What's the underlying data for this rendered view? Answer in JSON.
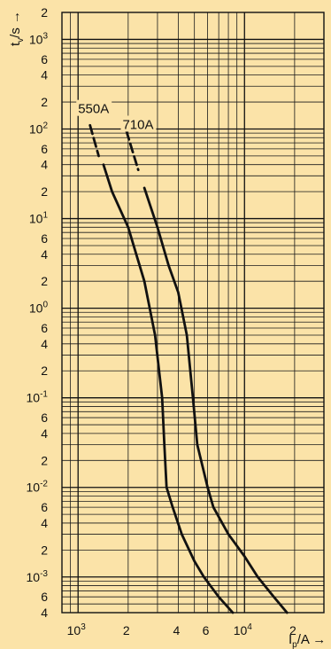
{
  "chart_data": {
    "type": "line",
    "title": "",
    "x_scale": "log",
    "y_scale": "log",
    "grid": true,
    "xlim": [
      800,
      30000
    ],
    "ylim": [
      0.0004,
      2000
    ],
    "xlabel": {
      "main": "I",
      "sub": "p",
      "rest": "/A →"
    },
    "ylabel": {
      "main": "t",
      "sub": "v",
      "rest": "/s →"
    },
    "x_ticks": [
      {
        "value": 1000,
        "label": "10",
        "exp": "3"
      },
      {
        "value": 2000,
        "label": "2",
        "exp": ""
      },
      {
        "value": 4000,
        "label": "4",
        "exp": ""
      },
      {
        "value": 6000,
        "label": "6",
        "exp": ""
      },
      {
        "value": 10000,
        "label": "10",
        "exp": "4"
      },
      {
        "value": 20000,
        "label": "2",
        "exp": ""
      }
    ],
    "y_ticks": [
      {
        "value": 2000,
        "label": "2",
        "exp": ""
      },
      {
        "value": 1000,
        "label": "10",
        "exp": "3"
      },
      {
        "value": 600,
        "label": "6",
        "exp": ""
      },
      {
        "value": 400,
        "label": "4",
        "exp": ""
      },
      {
        "value": 200,
        "label": "2",
        "exp": ""
      },
      {
        "value": 100,
        "label": "10",
        "exp": "2"
      },
      {
        "value": 60,
        "label": "6",
        "exp": ""
      },
      {
        "value": 40,
        "label": "4",
        "exp": ""
      },
      {
        "value": 20,
        "label": "2",
        "exp": ""
      },
      {
        "value": 10,
        "label": "10",
        "exp": "1"
      },
      {
        "value": 6,
        "label": "6",
        "exp": ""
      },
      {
        "value": 4,
        "label": "4",
        "exp": ""
      },
      {
        "value": 2,
        "label": "2",
        "exp": ""
      },
      {
        "value": 1,
        "label": "10",
        "exp": "0"
      },
      {
        "value": 0.6,
        "label": "6",
        "exp": ""
      },
      {
        "value": 0.4,
        "label": "4",
        "exp": ""
      },
      {
        "value": 0.2,
        "label": "2",
        "exp": ""
      },
      {
        "value": 0.1,
        "label": "10",
        "exp": "-1"
      },
      {
        "value": 0.06,
        "label": "6",
        "exp": ""
      },
      {
        "value": 0.04,
        "label": "4",
        "exp": ""
      },
      {
        "value": 0.02,
        "label": "2",
        "exp": ""
      },
      {
        "value": 0.01,
        "label": "10",
        "exp": "-2"
      },
      {
        "value": 0.006,
        "label": "6",
        "exp": ""
      },
      {
        "value": 0.004,
        "label": "4",
        "exp": ""
      },
      {
        "value": 0.002,
        "label": "2",
        "exp": ""
      },
      {
        "value": 0.001,
        "label": "10",
        "exp": "-3"
      },
      {
        "value": 0.0006,
        "label": "6",
        "exp": ""
      },
      {
        "value": 0.0004,
        "label": "4",
        "exp": ""
      }
    ],
    "series": [
      {
        "name": "550A",
        "label_at": [
          1000,
          150
        ],
        "dashed_points": [
          [
            1180,
            110
          ],
          [
            1330,
            50
          ]
        ],
        "points": [
          [
            1420,
            40
          ],
          [
            1600,
            20
          ],
          [
            2000,
            8
          ],
          [
            2500,
            2
          ],
          [
            2900,
            0.5
          ],
          [
            3200,
            0.1
          ],
          [
            3300,
            0.03
          ],
          [
            3400,
            0.01
          ],
          [
            3700,
            0.006
          ],
          [
            4200,
            0.003
          ],
          [
            5000,
            0.0015
          ],
          [
            5700,
            0.001
          ],
          [
            7000,
            0.0006
          ],
          [
            8500,
            0.0004
          ]
        ]
      },
      {
        "name": "710A",
        "label_at": [
          1850,
          100
        ],
        "dashed_points": [
          [
            1950,
            95
          ],
          [
            2300,
            35
          ]
        ],
        "points": [
          [
            2500,
            22
          ],
          [
            3000,
            8
          ],
          [
            3500,
            3
          ],
          [
            4000,
            1.5
          ],
          [
            4500,
            0.5
          ],
          [
            4900,
            0.1
          ],
          [
            5200,
            0.03
          ],
          [
            6000,
            0.01
          ],
          [
            6500,
            0.006
          ],
          [
            8000,
            0.003
          ],
          [
            10000,
            0.0017
          ],
          [
            12000,
            0.001
          ],
          [
            15000,
            0.0006
          ],
          [
            18000,
            0.0004
          ]
        ]
      }
    ],
    "colors": {
      "background": "#fbe3a8",
      "ink": "#111111"
    }
  }
}
